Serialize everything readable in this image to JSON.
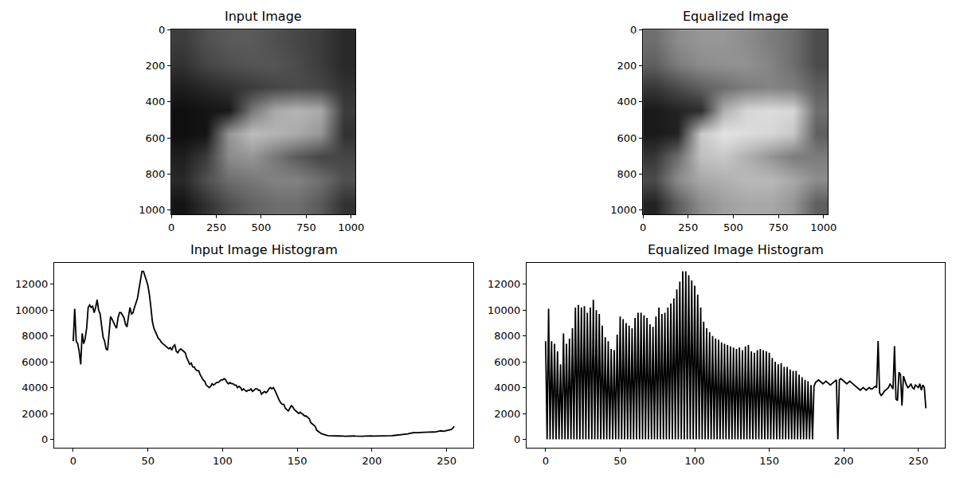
{
  "chart_data": [
    {
      "type": "image",
      "title": "Input Image",
      "x": [
        0,
        128,
        256,
        384,
        512,
        640,
        768,
        896,
        1024
      ],
      "y": [
        0,
        128,
        256,
        384,
        512,
        640,
        768,
        896,
        1024
      ],
      "values": [
        [
          60,
          80,
          90,
          90,
          80,
          70,
          60,
          40
        ],
        [
          50,
          70,
          80,
          85,
          85,
          75,
          60,
          40
        ],
        [
          30,
          40,
          50,
          60,
          70,
          75,
          70,
          50
        ],
        [
          15,
          20,
          25,
          120,
          170,
          180,
          170,
          60
        ],
        [
          15,
          20,
          150,
          190,
          180,
          170,
          150,
          50
        ],
        [
          30,
          60,
          140,
          150,
          120,
          90,
          70,
          70
        ],
        [
          40,
          80,
          110,
          120,
          130,
          130,
          110,
          80
        ],
        [
          20,
          50,
          80,
          100,
          110,
          110,
          90,
          50
        ]
      ],
      "zlim": [
        0,
        255
      ],
      "xlim": [
        -0.5,
        1023.5
      ],
      "ylim": [
        1023.5,
        -0.5
      ],
      "xticks": [
        0,
        250,
        500,
        750,
        1000
      ],
      "yticks": [
        0,
        200,
        400,
        600,
        800,
        1000
      ]
    },
    {
      "type": "image",
      "title": "Equalized Image",
      "x": [
        0,
        128,
        256,
        384,
        512,
        640,
        768,
        896,
        1024
      ],
      "y": [
        0,
        128,
        256,
        384,
        512,
        640,
        768,
        896,
        1024
      ],
      "values": [
        [
          110,
          140,
          150,
          150,
          140,
          125,
          110,
          75
        ],
        [
          95,
          125,
          140,
          145,
          145,
          132,
          110,
          75
        ],
        [
          55,
          75,
          95,
          110,
          125,
          132,
          125,
          95
        ],
        [
          25,
          35,
          45,
          176,
          215,
          220,
          215,
          110
        ],
        [
          25,
          35,
          200,
          228,
          220,
          215,
          200,
          95
        ],
        [
          55,
          110,
          192,
          200,
          176,
          150,
          125,
          125
        ],
        [
          75,
          140,
          168,
          176,
          185,
          185,
          168,
          140
        ],
        [
          35,
          95,
          140,
          160,
          168,
          168,
          150,
          95
        ]
      ],
      "zlim": [
        0,
        255
      ],
      "xlim": [
        -0.5,
        1023.5
      ],
      "ylim": [
        1023.5,
        -0.5
      ],
      "xticks": [
        0,
        250,
        500,
        750,
        1000
      ],
      "yticks": [
        0,
        200,
        400,
        600,
        800,
        1000
      ]
    },
    {
      "type": "line",
      "title": "Input Image Histogram",
      "color": "#000000",
      "grid": false,
      "x": [
        0,
        1,
        2,
        3,
        4,
        5,
        6,
        7,
        8,
        9,
        10,
        11,
        12,
        13,
        14,
        15,
        16,
        17,
        18,
        19,
        20,
        21,
        22,
        23,
        24,
        25,
        26,
        27,
        28,
        29,
        30,
        31,
        32,
        33,
        34,
        35,
        36,
        37,
        38,
        39,
        40,
        41,
        42,
        43,
        44,
        45,
        46,
        47,
        48,
        49,
        50,
        51,
        52,
        53,
        54,
        55,
        56,
        57,
        58,
        59,
        60,
        61,
        62,
        63,
        64,
        65,
        66,
        67,
        68,
        69,
        70,
        71,
        72,
        73,
        74,
        75,
        76,
        77,
        78,
        79,
        80,
        81,
        82,
        83,
        84,
        85,
        86,
        87,
        88,
        89,
        90,
        91,
        92,
        93,
        94,
        95,
        96,
        97,
        98,
        99,
        100,
        101,
        102,
        103,
        104,
        105,
        106,
        107,
        108,
        109,
        110,
        111,
        112,
        113,
        114,
        115,
        116,
        117,
        118,
        119,
        120,
        121,
        122,
        123,
        124,
        125,
        126,
        127,
        128,
        129,
        130,
        131,
        132,
        133,
        134,
        135,
        136,
        137,
        138,
        139,
        140,
        141,
        142,
        143,
        144,
        145,
        146,
        147,
        148,
        149,
        150,
        151,
        152,
        153,
        154,
        155,
        156,
        157,
        158,
        159,
        160,
        161,
        162,
        163,
        164,
        165,
        166,
        167,
        168,
        169,
        170,
        171,
        172,
        173,
        174,
        175,
        176,
        177,
        178,
        179,
        180,
        181,
        182,
        183,
        184,
        185,
        186,
        187,
        188,
        189,
        190,
        191,
        192,
        193,
        194,
        195,
        196,
        197,
        198,
        199,
        200,
        201,
        202,
        203,
        204,
        205,
        206,
        207,
        208,
        209,
        210,
        211,
        212,
        213,
        214,
        215,
        216,
        217,
        218,
        219,
        220,
        221,
        222,
        223,
        224,
        225,
        226,
        227,
        228,
        229,
        230,
        231,
        232,
        233,
        234,
        235,
        236,
        237,
        238,
        239,
        240,
        241,
        242,
        243,
        244,
        245,
        246,
        247,
        248,
        249,
        250,
        251,
        252,
        253,
        254,
        255
      ],
      "values": [
        7600,
        10100,
        7600,
        7400,
        6800,
        5800,
        8200,
        7400,
        7800,
        8600,
        10200,
        10400,
        10200,
        10300,
        9800,
        10200,
        10800,
        10000,
        9700,
        8800,
        7900,
        7600,
        7000,
        6900,
        8100,
        9500,
        9300,
        9000,
        8800,
        8600,
        9400,
        9800,
        9800,
        9600,
        9400,
        8900,
        8700,
        9500,
        10200,
        9700,
        9800,
        10200,
        10500,
        10900,
        11600,
        12200,
        13000,
        13000,
        12700,
        12300,
        11900,
        11200,
        10200,
        9100,
        8600,
        8300,
        8000,
        7800,
        7700,
        7500,
        7400,
        7300,
        7200,
        7100,
        7000,
        7100,
        6900,
        7200,
        7300,
        6800,
        6700,
        6900,
        7000,
        6900,
        6800,
        6700,
        6300,
        6000,
        5800,
        5900,
        5600,
        5600,
        5400,
        5300,
        5300,
        5000,
        4800,
        4600,
        4500,
        4200,
        4100,
        4000,
        4100,
        4300,
        4200,
        4300,
        4400,
        4400,
        4500,
        4600,
        4600,
        4700,
        4600,
        4400,
        4300,
        4400,
        4300,
        4300,
        4200,
        4200,
        4000,
        4100,
        4000,
        3800,
        3900,
        3800,
        3700,
        3800,
        3800,
        3900,
        3700,
        3800,
        3900,
        3900,
        3800,
        3800,
        3500,
        3600,
        3700,
        3600,
        3700,
        3900,
        4000,
        3900,
        4000,
        3800,
        3500,
        3200,
        3000,
        2800,
        2700,
        2700,
        2400,
        2300,
        2200,
        2400,
        2600,
        2500,
        2300,
        2200,
        2100,
        2000,
        2100,
        2000,
        1900,
        1800,
        1800,
        1700,
        1600,
        1300,
        1200,
        1100,
        1000,
        700,
        600,
        500,
        450,
        400,
        350,
        320,
        300,
        280,
        270,
        260,
        270,
        260,
        250,
        260,
        270,
        250,
        260,
        250,
        240,
        250,
        260,
        250,
        240,
        250,
        260,
        250,
        240,
        250,
        260,
        250,
        240,
        250,
        260,
        250,
        240,
        250,
        260,
        250,
        250,
        260,
        250,
        240,
        250,
        260,
        270,
        260,
        270,
        280,
        270,
        280,
        290,
        300,
        310,
        320,
        330,
        340,
        350,
        370,
        380,
        400,
        420,
        450,
        480,
        500,
        520,
        510,
        500,
        520,
        530,
        540,
        530,
        550,
        560,
        570,
        560,
        580,
        600,
        580,
        560,
        600,
        620,
        640,
        660,
        640,
        620,
        650,
        680,
        700,
        720,
        760,
        850,
        1000
      ],
      "xlim": [
        -12.75,
        267.75
      ],
      "ylim": [
        -650,
        13650
      ],
      "xticks": [
        0,
        50,
        100,
        150,
        200,
        250
      ],
      "yticks": [
        0,
        2000,
        4000,
        6000,
        8000,
        10000,
        12000
      ]
    },
    {
      "type": "line",
      "title": "Equalized Image Histogram",
      "color": "#000000",
      "grid": false,
      "x": [
        0,
        1,
        2,
        3,
        4,
        5,
        6,
        7,
        8,
        9,
        10,
        11,
        12,
        13,
        14,
        15,
        16,
        17,
        18,
        19,
        20,
        21,
        22,
        23,
        24,
        25,
        26,
        27,
        28,
        29,
        30,
        31,
        32,
        33,
        34,
        35,
        36,
        37,
        38,
        39,
        40,
        41,
        42,
        43,
        44,
        45,
        46,
        47,
        48,
        49,
        50,
        51,
        52,
        53,
        54,
        55,
        56,
        57,
        58,
        59,
        60,
        61,
        62,
        63,
        64,
        65,
        66,
        67,
        68,
        69,
        70,
        71,
        72,
        73,
        74,
        75,
        76,
        77,
        78,
        79,
        80,
        81,
        82,
        83,
        84,
        85,
        86,
        87,
        88,
        89,
        90,
        91,
        92,
        93,
        94,
        95,
        96,
        97,
        98,
        99,
        100,
        101,
        102,
        103,
        104,
        105,
        106,
        107,
        108,
        109,
        110,
        111,
        112,
        113,
        114,
        115,
        116,
        117,
        118,
        119,
        120,
        121,
        122,
        123,
        124,
        125,
        126,
        127,
        128,
        129,
        130,
        131,
        132,
        133,
        134,
        135,
        136,
        137,
        138,
        139,
        140,
        141,
        142,
        143,
        144,
        145,
        146,
        147,
        148,
        149,
        150,
        151,
        152,
        153,
        154,
        155,
        156,
        157,
        158,
        159,
        160,
        161,
        162,
        163,
        164,
        165,
        166,
        167,
        168,
        169,
        170,
        171,
        172,
        173,
        174,
        175,
        176,
        177,
        178,
        179,
        180,
        181,
        182,
        183,
        184,
        185,
        186,
        187,
        188,
        189,
        190,
        191,
        192,
        193,
        194,
        195,
        196,
        197,
        198,
        199,
        200,
        201,
        202,
        203,
        204,
        205,
        206,
        207,
        208,
        209,
        210,
        211,
        212,
        213,
        214,
        215,
        216,
        217,
        218,
        219,
        220,
        221,
        222,
        223,
        224,
        225,
        226,
        227,
        228,
        229,
        230,
        231,
        232,
        233,
        234,
        235,
        236,
        237,
        238,
        239,
        240,
        241,
        242,
        243,
        244,
        245,
        246,
        247,
        248,
        249,
        250,
        251,
        252,
        253,
        254,
        255
      ],
      "values": [
        7600,
        0,
        10100,
        0,
        7600,
        0,
        7400,
        0,
        6800,
        0,
        5800,
        0,
        8200,
        0,
        7400,
        0,
        7800,
        0,
        8600,
        0,
        10200,
        0,
        10400,
        0,
        10200,
        0,
        10300,
        0,
        9800,
        0,
        10200,
        0,
        10800,
        0,
        10000,
        0,
        9700,
        0,
        8800,
        0,
        7900,
        0,
        7600,
        0,
        7000,
        0,
        6900,
        0,
        8100,
        0,
        9500,
        0,
        9300,
        0,
        9000,
        0,
        8800,
        0,
        8600,
        0,
        9400,
        0,
        9800,
        0,
        9800,
        0,
        9600,
        0,
        9400,
        0,
        8900,
        0,
        8700,
        0,
        9500,
        0,
        10200,
        0,
        9700,
        0,
        9800,
        0,
        10200,
        0,
        10500,
        0,
        10900,
        0,
        11600,
        0,
        12200,
        0,
        13000,
        0,
        13000,
        0,
        12700,
        0,
        12300,
        0,
        11900,
        0,
        11200,
        0,
        10200,
        0,
        9100,
        0,
        8600,
        0,
        8300,
        0,
        8000,
        0,
        7800,
        0,
        7700,
        0,
        7500,
        0,
        7400,
        0,
        7300,
        0,
        7200,
        0,
        7100,
        0,
        7000,
        0,
        7100,
        0,
        6900,
        0,
        7200,
        0,
        7300,
        0,
        6800,
        0,
        6700,
        0,
        6900,
        0,
        7000,
        0,
        6900,
        0,
        6800,
        0,
        6700,
        0,
        6300,
        0,
        6000,
        0,
        5800,
        0,
        5900,
        0,
        5600,
        0,
        5600,
        0,
        5400,
        0,
        5300,
        0,
        5300,
        0,
        5000,
        0,
        4800,
        0,
        4600,
        0,
        4500,
        0,
        4200,
        0,
        4100,
        4400,
        4500,
        4600,
        4500,
        4400,
        4300,
        4400,
        4500,
        4400,
        4300,
        4200,
        4300,
        4400,
        4500,
        4600,
        0,
        4600,
        4700,
        4600,
        4500,
        4400,
        4300,
        4400,
        4500,
        4400,
        4300,
        4200,
        4100,
        4000,
        3900,
        3800,
        3900,
        4000,
        3900,
        3800,
        3900,
        4000,
        3900,
        3900,
        4000,
        4100,
        4000,
        7600,
        3600,
        3400,
        3500,
        3700,
        3800,
        3900,
        4000,
        4300,
        4100,
        3900,
        7200,
        3100,
        3000,
        5200,
        5000,
        2600,
        4900,
        4500,
        4200,
        4000,
        4100,
        4300,
        4000,
        3900,
        4200,
        4100,
        4000,
        4300,
        3800,
        4200,
        4000,
        2400
      ],
      "xlim": [
        -12.75,
        267.75
      ],
      "ylim": [
        -650,
        13650
      ],
      "xticks": [
        0,
        50,
        100,
        150,
        200,
        250
      ],
      "yticks": [
        0,
        2000,
        4000,
        6000,
        8000,
        10000,
        12000
      ]
    }
  ]
}
